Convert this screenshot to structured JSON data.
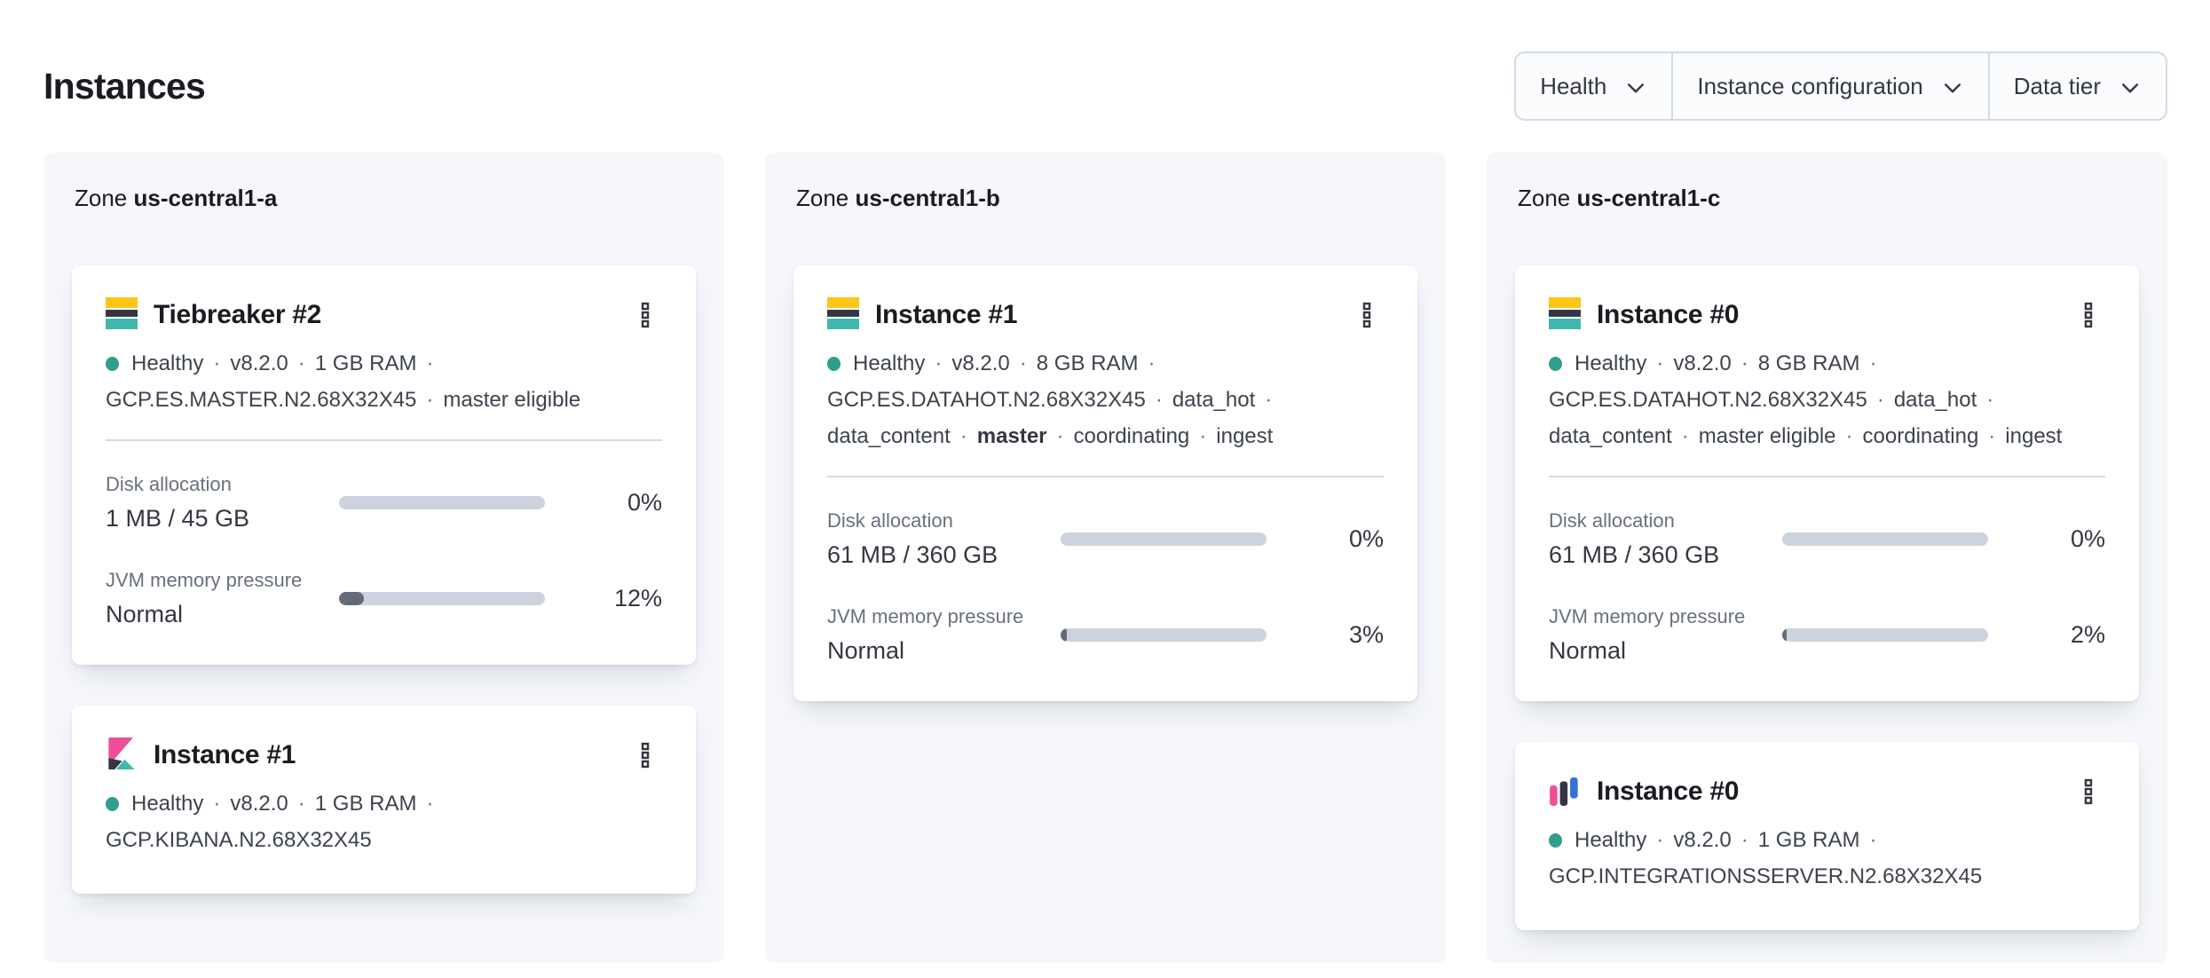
{
  "page": {
    "title": "Instances"
  },
  "separator": "·",
  "filters": [
    {
      "label": "Health"
    },
    {
      "label": "Instance configuration"
    },
    {
      "label": "Data tier"
    }
  ],
  "colors": {
    "zone_bg": "#f5f7fb",
    "health_dot": "#2f9e8c",
    "progress_track": "#ccd3df",
    "progress_fill": "#636a78",
    "brand_yellow": "#fec514",
    "brand_teal": "#40b9ac",
    "brand_pink": "#f04e98",
    "brand_navy": "#343741",
    "brand_blue": "#3272d9"
  },
  "zones": [
    {
      "label": "Zone",
      "name": "us-central1-a",
      "cards": [
        {
          "icon": "elasticsearch-logo",
          "title": "Tiebreaker #2",
          "meta": [
            {
              "text": "Healthy",
              "health": true
            },
            {
              "text": "v8.2.0"
            },
            {
              "text": "1 GB RAM"
            },
            {
              "text": "GCP.ES.MASTER.N2.68X32X45",
              "break": true
            },
            {
              "text": "master eligible"
            }
          ],
          "metrics": [
            {
              "label": "Disk allocation",
              "value": "1 MB / 45 GB",
              "percent": 0,
              "percent_label": "0%"
            },
            {
              "label": "JVM memory pressure",
              "value": "Normal",
              "percent": 12,
              "percent_label": "12%"
            }
          ]
        },
        {
          "icon": "kibana-logo",
          "title": "Instance #1",
          "meta": [
            {
              "text": "Healthy",
              "health": true
            },
            {
              "text": "v8.2.0"
            },
            {
              "text": "1 GB RAM"
            },
            {
              "text": "GCP.KIBANA.N2.68X32X45",
              "break": true
            }
          ]
        }
      ]
    },
    {
      "label": "Zone",
      "name": "us-central1-b",
      "cards": [
        {
          "icon": "elasticsearch-logo",
          "title": "Instance #1",
          "meta": [
            {
              "text": "Healthy",
              "health": true
            },
            {
              "text": "v8.2.0"
            },
            {
              "text": "8 GB RAM"
            },
            {
              "text": "GCP.ES.DATAHOT.N2.68X32X45",
              "break": true
            },
            {
              "text": "data_hot"
            },
            {
              "text": "data_content",
              "break": true
            },
            {
              "text": "master",
              "bold": true
            },
            {
              "text": "coordinating"
            },
            {
              "text": "ingest"
            }
          ],
          "metrics": [
            {
              "label": "Disk allocation",
              "value": "61 MB / 360 GB",
              "percent": 0,
              "percent_label": "0%"
            },
            {
              "label": "JVM memory pressure",
              "value": "Normal",
              "percent": 3,
              "percent_label": "3%"
            }
          ]
        }
      ]
    },
    {
      "label": "Zone",
      "name": "us-central1-c",
      "cards": [
        {
          "icon": "elasticsearch-logo",
          "title": "Instance #0",
          "meta": [
            {
              "text": "Healthy",
              "health": true
            },
            {
              "text": "v8.2.0"
            },
            {
              "text": "8 GB RAM"
            },
            {
              "text": "GCP.ES.DATAHOT.N2.68X32X45",
              "break": true
            },
            {
              "text": "data_hot"
            },
            {
              "text": "data_content",
              "break": true
            },
            {
              "text": "master eligible"
            },
            {
              "text": "coordinating"
            },
            {
              "text": "ingest"
            }
          ],
          "metrics": [
            {
              "label": "Disk allocation",
              "value": "61 MB / 360 GB",
              "percent": 0,
              "percent_label": "0%"
            },
            {
              "label": "JVM memory pressure",
              "value": "Normal",
              "percent": 2,
              "percent_label": "2%"
            }
          ]
        },
        {
          "icon": "integrations-server-logo",
          "title": "Instance #0",
          "meta": [
            {
              "text": "Healthy",
              "health": true
            },
            {
              "text": "v8.2.0"
            },
            {
              "text": "1 GB RAM"
            },
            {
              "text": "GCP.INTEGRATIONSSERVER.N2.68X32X45",
              "break": true
            }
          ]
        }
      ]
    }
  ]
}
